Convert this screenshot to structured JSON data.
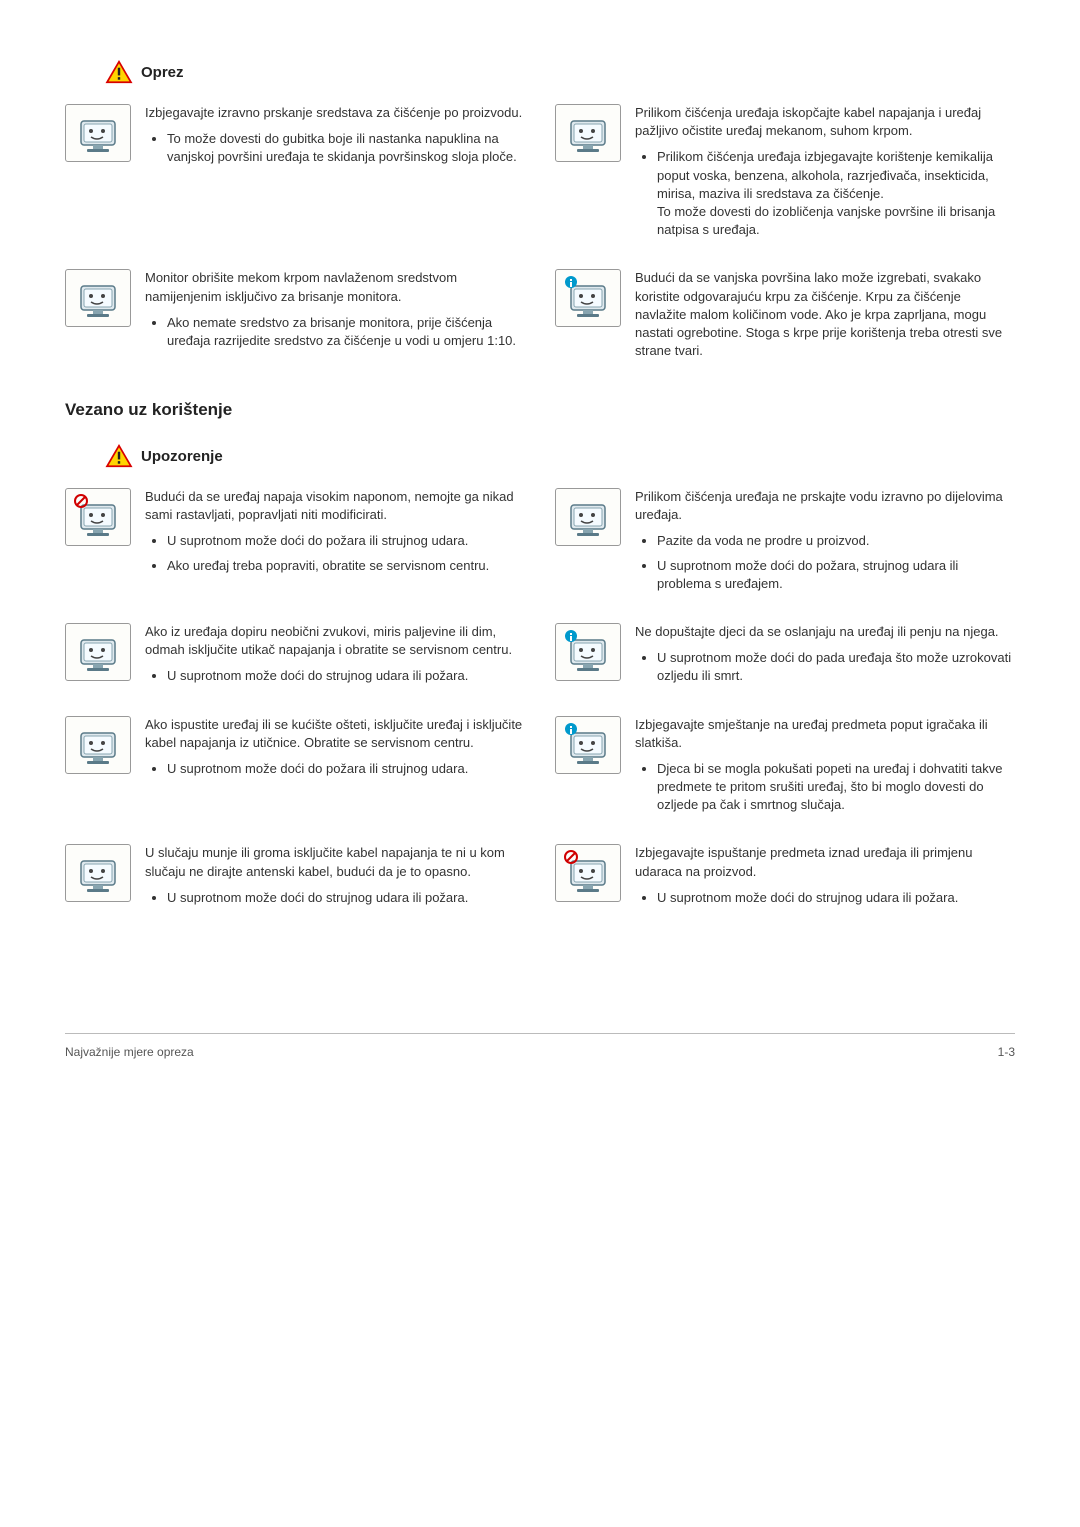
{
  "labels": {
    "caution": "Oprez",
    "warning": "Upozorenje"
  },
  "section2_title": "Vezano uz korištenje",
  "caution_rows": [
    {
      "left": {
        "lead": "Izbjegavajte izravno prskanje sredstava za čišćenje po proizvodu.",
        "bullets": [
          "To može dovesti do gubitka boje ili nastanka napuklina na vanjskoj površini uređaja te skidanja površinskog sloja ploče."
        ]
      },
      "right": {
        "lead": "Prilikom čišćenja uređaja iskopčajte kabel napajanja i uređaj pažljivo očistite uređaj mekanom, suhom krpom.",
        "bullets": [
          "Prilikom čišćenja uređaja izbjegavajte korištenje kemikalija poput voska, benzena, alkohola, razrjeđivača, insekticida, mirisa, maziva ili sredstava za čišćenje.\nTo može dovesti do izobličenja vanjske površine ili brisanja natpisa s uređaja."
        ]
      }
    },
    {
      "left": {
        "lead": "Monitor obrišite mekom krpom navlaženom sredstvom namijenjenim isključivo za brisanje monitora.",
        "bullets": [
          "Ako nemate sredstvo za brisanje monitora, prije čišćenja uređaja razrijedite sredstvo za čišćenje u vodi u omjeru 1:10."
        ]
      },
      "right": {
        "lead": "Budući da se vanjska površina lako može izgrebati, svakako koristite odgovarajuću krpu za čišćenje. Krpu za čišćenje navlažite malom količinom vode. Ako je krpa zaprljana, mogu nastati ogrebotine. Stoga s krpe prije korištenja treba otresti sve strane tvari.",
        "bullets": []
      }
    }
  ],
  "warning_rows": [
    {
      "left": {
        "lead": "Budući da se uređaj napaja visokim naponom, nemojte ga nikad sami rastavljati, popravljati niti modificirati.",
        "bullets": [
          "U suprotnom može doći do požara ili strujnog udara.",
          "Ako uređaj treba popraviti, obratite se servisnom centru."
        ]
      },
      "right": {
        "lead": "Prilikom čišćenja uređaja ne prskajte vodu izravno po dijelovima uređaja.",
        "bullets": [
          "Pazite da voda ne prodre u proizvod.",
          "U suprotnom može doći do požara, strujnog udara ili problema s uređajem."
        ]
      }
    },
    {
      "left": {
        "lead": "Ako iz uređaja dopiru neobični zvukovi, miris paljevine ili dim, odmah isključite utikač napajanja i obratite se servisnom centru.",
        "bullets": [
          "U suprotnom može doći do strujnog udara ili požara."
        ]
      },
      "right": {
        "lead": "Ne dopuštajte djeci da se oslanjaju na uređaj ili penju na njega.",
        "bullets": [
          "U suprotnom može doći do pada uređaja što može uzrokovati ozljedu ili smrt."
        ]
      }
    },
    {
      "left": {
        "lead": "Ako ispustite uređaj ili se kućište ošteti, isključite uređaj i isključite kabel napajanja iz utičnice. Obratite se servisnom centru.",
        "bullets": [
          "U suprotnom može doći do požara ili strujnog udara."
        ]
      },
      "right": {
        "lead": "Izbjegavajte smještanje na uređaj predmeta poput igračaka ili slatkiša.",
        "bullets": [
          "Djeca bi se mogla pokušati popeti na uređaj i dohvatiti takve predmete te pritom srušiti uređaj, što bi moglo dovesti do ozljede pa čak i smrtnog slučaja."
        ]
      }
    },
    {
      "left": {
        "lead": "U slučaju munje ili groma isključite kabel napajanja te ni u kom slučaju ne dirajte antenski kabel, budući da je to opasno.",
        "bullets": [
          "U suprotnom može doći do strujnog udara ili požara."
        ]
      },
      "right": {
        "lead": "Izbjegavajte ispuštanje predmeta iznad uređaja ili primjenu udaraca na proizvod.",
        "bullets": [
          "U suprotnom može doći do strujnog udara ili požara."
        ]
      }
    }
  ],
  "footer": {
    "left": "Najvažnije mjere opreza",
    "right": "1-3"
  },
  "colors": {
    "caution_triangle_stroke": "#d80000",
    "caution_triangle_fill": "#ffd400",
    "info_circle": "#0099cc",
    "prohibit": "#d00000"
  }
}
